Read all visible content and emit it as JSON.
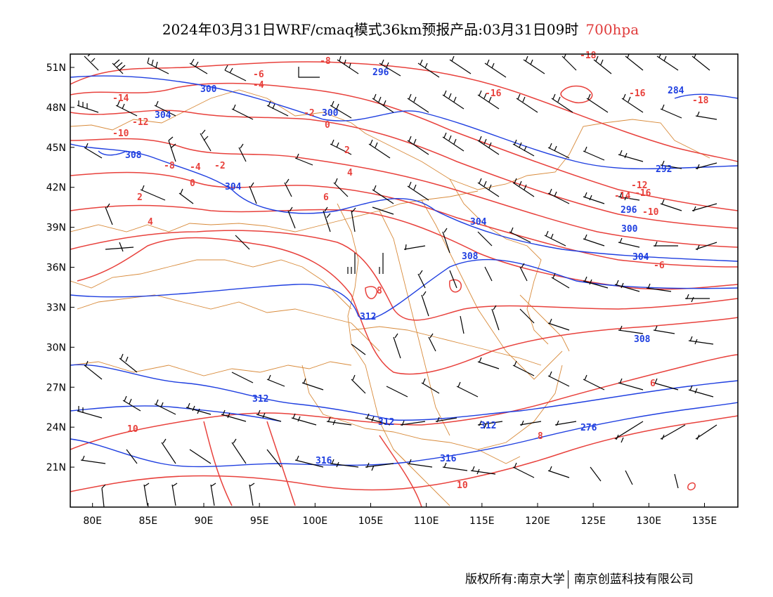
{
  "title": {
    "text": "2024年03月31日WRF/cmaq模式36km预报产品:03月31日09时",
    "level": "700hpa"
  },
  "colors": {
    "temperature": "#e8413c",
    "height": "#1f3fe0",
    "border": "#d88a3a",
    "barb": "#000000",
    "level_text": "#e03c3c"
  },
  "map": {
    "lon_range": [
      78,
      138
    ],
    "lat_range": [
      18,
      52
    ],
    "lon_ticks": [
      "80E",
      "85E",
      "90E",
      "95E",
      "100E",
      "105E",
      "110E",
      "115E",
      "120E",
      "125E",
      "130E",
      "135E"
    ],
    "lat_ticks": [
      "51N",
      "48N",
      "45N",
      "42N",
      "39N",
      "36N",
      "33N",
      "30N",
      "27N",
      "24N",
      "21N"
    ]
  },
  "height_labels": [
    "296",
    "300",
    "304",
    "308",
    "304",
    "300",
    "304",
    "308",
    "312",
    "312",
    "312",
    "316",
    "316",
    "312",
    "308",
    "304",
    "300",
    "296",
    "292",
    "284",
    "276"
  ],
  "temperature_labels": [
    "-18",
    "-16",
    "-18",
    "-16",
    "-14",
    "-12",
    "-10",
    "-8",
    "-6",
    "-4",
    "-2",
    "0",
    "2",
    "4",
    "6",
    "8",
    "10",
    "-14",
    "-12",
    "-10",
    "-8",
    "-6",
    "-4",
    "-2",
    "0",
    "2",
    "4",
    "6",
    "8",
    "10",
    "-16"
  ],
  "footer": {
    "left": "版权所有:南京大学",
    "right": "南京创蓝科技有限公司"
  }
}
